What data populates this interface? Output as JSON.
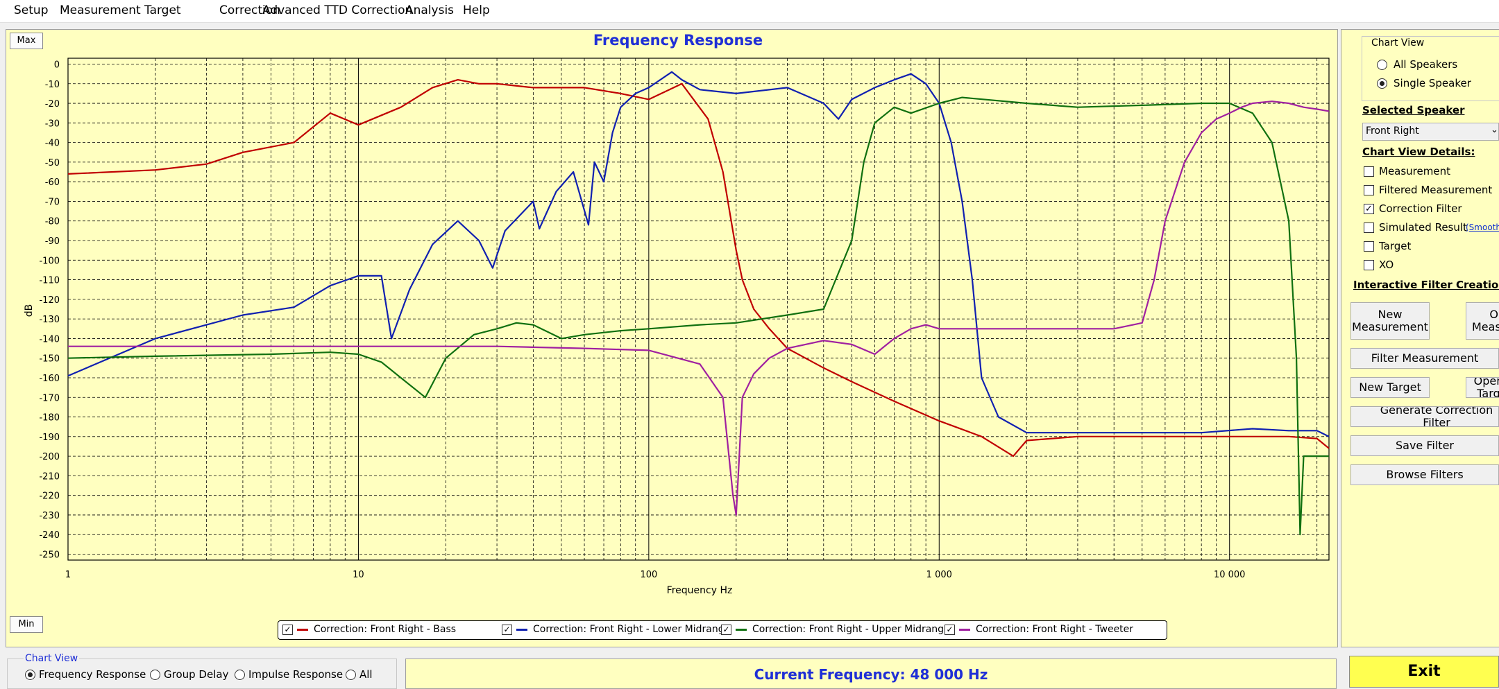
{
  "menu": [
    "Setup",
    "Measurement",
    "Target",
    "Correction",
    "Advanced TTD Correction",
    "Analysis",
    "Help"
  ],
  "chart": {
    "title": "Frequency Response",
    "max_label": "Max",
    "min_label": "Min",
    "xlabel": "Frequency Hz",
    "ylabel": "dB"
  },
  "chart_data": {
    "type": "line",
    "title": "Frequency Response",
    "xlabel": "Frequency Hz",
    "ylabel": "dB",
    "xscale": "log",
    "xlim": [
      1,
      22000
    ],
    "ylim": [
      -253,
      3
    ],
    "x_ticks": [
      {
        "v": 1,
        "label": "1"
      },
      {
        "v": 10,
        "label": "10"
      },
      {
        "v": 100,
        "label": "100"
      },
      {
        "v": 1000,
        "label": "1 000"
      },
      {
        "v": 10000,
        "label": "10 000"
      }
    ],
    "y_ticks": [
      0,
      -10,
      -20,
      -30,
      -40,
      -50,
      -60,
      -70,
      -80,
      -90,
      -100,
      -110,
      -120,
      -130,
      -140,
      -150,
      -160,
      -170,
      -180,
      -190,
      -200,
      -210,
      -220,
      -230,
      -240,
      -250
    ],
    "grid": true,
    "legend_placement": "bottom",
    "series": [
      {
        "name": "Correction: Front Right - Bass",
        "color": "#c00000",
        "x": [
          1,
          2,
          3,
          4,
          6,
          8,
          10,
          14,
          18,
          22,
          26,
          30,
          40,
          50,
          60,
          80,
          100,
          130,
          160,
          180,
          200,
          210,
          230,
          260,
          300,
          400,
          500,
          700,
          1000,
          1400,
          1800,
          2000,
          3000,
          5000,
          8000,
          12000,
          16000,
          20000,
          22000
        ],
        "y": [
          -56,
          -54,
          -51,
          -45,
          -40,
          -25,
          -31,
          -22,
          -12,
          -8,
          -10,
          -10,
          -12,
          -12,
          -12,
          -15,
          -18,
          -10,
          -28,
          -55,
          -95,
          -110,
          -125,
          -135,
          -145,
          -155,
          -162,
          -172,
          -182,
          -190,
          -200,
          -192,
          -190,
          -190,
          -190,
          -190,
          -190,
          -191,
          -196
        ]
      },
      {
        "name": "Correction: Front Right - Lower Midrange",
        "color": "#1020b0",
        "x": [
          1,
          2,
          4,
          6,
          8,
          10,
          12,
          13,
          15,
          18,
          22,
          26,
          29,
          32,
          40,
          42,
          48,
          55,
          62,
          65,
          70,
          75,
          80,
          90,
          100,
          120,
          130,
          150,
          200,
          300,
          400,
          450,
          500,
          600,
          700,
          800,
          900,
          1000,
          1100,
          1200,
          1300,
          1400,
          1600,
          2000,
          3000,
          5000,
          8000,
          12000,
          16000,
          20000,
          22000
        ],
        "y": [
          -159,
          -140,
          -128,
          -124,
          -113,
          -108,
          -108,
          -140,
          -115,
          -92,
          -80,
          -90,
          -104,
          -85,
          -70,
          -84,
          -65,
          -55,
          -82,
          -50,
          -60,
          -35,
          -22,
          -15,
          -12,
          -4,
          -8,
          -13,
          -15,
          -12,
          -20,
          -28,
          -18,
          -12,
          -8,
          -5,
          -10,
          -20,
          -40,
          -70,
          -110,
          -160,
          -180,
          -188,
          -188,
          -188,
          -188,
          -186,
          -187,
          -187,
          -190
        ]
      },
      {
        "name": "Correction: Front Right - Upper Midrange",
        "color": "#107010",
        "x": [
          1,
          2,
          5,
          8,
          10,
          12,
          14,
          17,
          20,
          25,
          30,
          35,
          40,
          50,
          60,
          80,
          100,
          150,
          200,
          300,
          400,
          500,
          550,
          600,
          700,
          800,
          1000,
          1200,
          2000,
          3000,
          5000,
          8000,
          10000,
          12000,
          14000,
          16000,
          17000,
          17500,
          18000,
          20000,
          22000
        ],
        "y": [
          -150,
          -149,
          -148,
          -147,
          -148,
          -152,
          -160,
          -170,
          -150,
          -138,
          -135,
          -132,
          -133,
          -140,
          -138,
          -136,
          -135,
          -133,
          -132,
          -128,
          -125,
          -90,
          -50,
          -30,
          -22,
          -25,
          -20,
          -17,
          -20,
          -22,
          -21,
          -20,
          -20,
          -25,
          -40,
          -80,
          -150,
          -240,
          -200,
          -200,
          -200
        ]
      },
      {
        "name": "Correction: Front Right - Tweeter",
        "color": "#a020a0",
        "x": [
          1,
          10,
          30,
          60,
          100,
          150,
          180,
          195,
          200,
          210,
          230,
          260,
          300,
          400,
          500,
          600,
          700,
          800,
          900,
          1000,
          1500,
          2000,
          3000,
          4000,
          5000,
          5500,
          6000,
          7000,
          8000,
          9000,
          10000,
          11000,
          12000,
          14000,
          16000,
          18000,
          20000,
          22000
        ],
        "y": [
          -144,
          -144,
          -144,
          -145,
          -146,
          -153,
          -170,
          -220,
          -230,
          -170,
          -158,
          -150,
          -145,
          -141,
          -143,
          -148,
          -140,
          -135,
          -133,
          -135,
          -135,
          -135,
          -135,
          -135,
          -132,
          -110,
          -80,
          -50,
          -35,
          -28,
          -25,
          -22,
          -20,
          -19,
          -20,
          -22,
          -23,
          -24
        ]
      }
    ]
  },
  "legend": [
    {
      "label": "Correction: Front Right - Bass",
      "color": "#c00000"
    },
    {
      "label": "Correction: Front Right - Lower Midrange",
      "color": "#1020b0"
    },
    {
      "label": "Correction: Front Right - Upper Midrange",
      "color": "#107010"
    },
    {
      "label": "Correction: Front Right - Tweeter",
      "color": "#a020a0"
    }
  ],
  "right_panel": {
    "chart_view_title": "Chart View",
    "all_speakers": "All Speakers",
    "single_speaker": "Single Speaker",
    "selected_speaker_title": "Selected Speaker",
    "selected_speaker_value": "Front Right",
    "details_title": "Chart View Details:",
    "details": [
      {
        "label": "Measurement",
        "checked": false
      },
      {
        "label": "Filtered Measurement",
        "checked": false
      },
      {
        "label": "Correction Filter",
        "checked": true
      },
      {
        "label": "Simulated Result",
        "checked": false
      },
      {
        "label": "Target",
        "checked": false
      },
      {
        "label": "XO",
        "checked": false
      }
    ],
    "smooth_link": "(Smooth",
    "interactive_title": "Interactive Filter Creation:",
    "new_measurement": "New Measurement",
    "open_measurement": "Open Measureme",
    "filter_measurement": "Filter Measurement",
    "new_target": "New Target",
    "open_target": "Open Targ",
    "generate_filter": "Generate Correction Filter",
    "save_filter": "Save Filter",
    "browse_filters": "Browse Filters"
  },
  "bottom": {
    "chart_view_title": "Chart View",
    "options": [
      "Frequency Response",
      "Group Delay",
      "Impulse Response",
      "All"
    ],
    "selected": 0,
    "current_frequency": "Current Frequency: 48 000 Hz",
    "exit": "Exit"
  }
}
